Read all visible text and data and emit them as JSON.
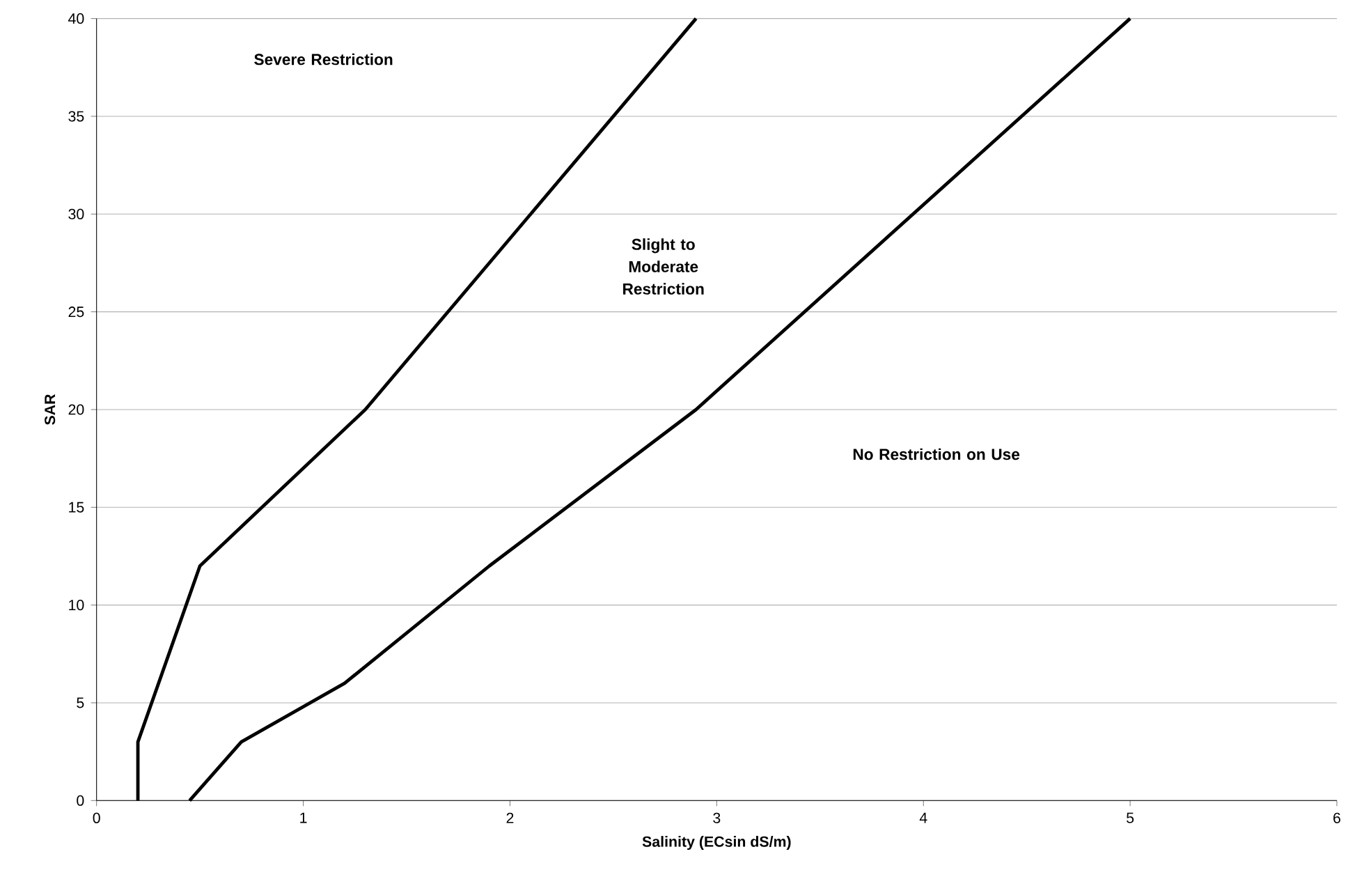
{
  "chart_data": {
    "type": "line",
    "xlabel": "Salinity (ECsin dS/m)",
    "ylabel": "SAR",
    "series": [
      {
        "color": "#000000",
        "x": [
          0.2,
          0.2,
          0.5,
          1.3,
          2.9
        ],
        "values": [
          0,
          3,
          12,
          20,
          40
        ]
      },
      {
        "color": "#000000",
        "x": [
          0.45,
          0.7,
          1.2,
          1.9,
          2.9,
          5.0
        ],
        "values": [
          0,
          3,
          6,
          12,
          20,
          40
        ]
      }
    ],
    "xlim": [
      0,
      6
    ],
    "ylim": [
      0,
      40
    ],
    "xticks": [
      0,
      1,
      2,
      3,
      4,
      5,
      6
    ],
    "yticks": [
      0,
      5,
      10,
      15,
      20,
      25,
      30,
      35,
      40
    ],
    "grid": "y",
    "marker": "none",
    "line_style": "solid",
    "annotations": [
      "Severe Restriction",
      "Slight to Moderate Restriction",
      "No Restriction on Use"
    ]
  }
}
